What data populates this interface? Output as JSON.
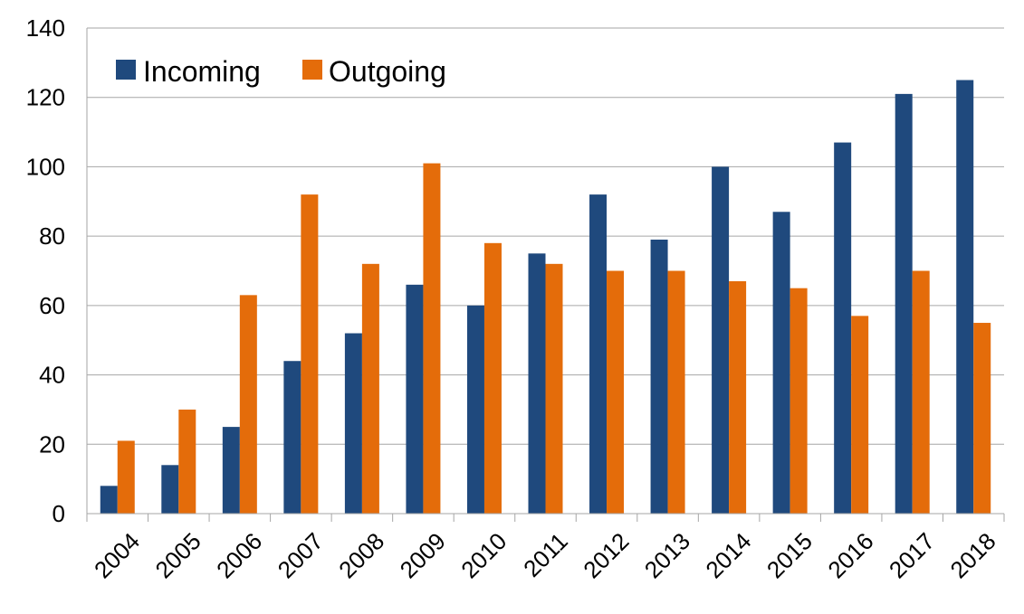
{
  "chart_data": {
    "type": "bar",
    "categories": [
      "2004",
      "2005",
      "2006",
      "2007",
      "2008",
      "2009",
      "2010",
      "2011",
      "2012",
      "2013",
      "2014",
      "2015",
      "2016",
      "2017",
      "2018"
    ],
    "series": [
      {
        "name": "Incoming",
        "color": "#1F497D",
        "values": [
          8,
          14,
          25,
          44,
          52,
          66,
          60,
          75,
          92,
          79,
          100,
          87,
          107,
          121,
          125
        ]
      },
      {
        "name": "Outgoing",
        "color": "#E46C0A",
        "values": [
          21,
          30,
          63,
          92,
          72,
          101,
          78,
          72,
          70,
          70,
          67,
          65,
          57,
          70,
          55
        ]
      }
    ],
    "ylim": [
      0,
      140
    ],
    "yticks": [
      0,
      20,
      40,
      60,
      80,
      100,
      120,
      140
    ],
    "grid": true,
    "legend_position": "top-left",
    "title": "",
    "xlabel": "",
    "ylabel": ""
  }
}
